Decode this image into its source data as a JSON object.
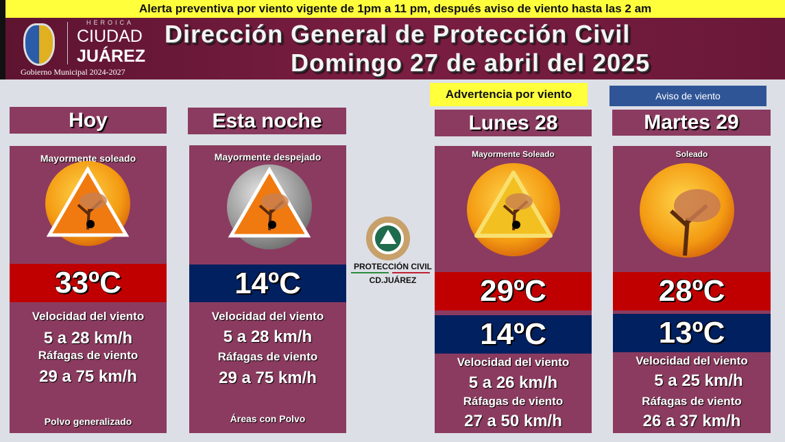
{
  "alert": "Alerta preventiva por viento vigente de 1pm a 11 pm, después aviso de viento hasta las 2 am",
  "logo": {
    "heroica": "HEROICA",
    "ciudad": "CIUDAD",
    "juarez": "JUÁREZ",
    "gobierno": "Gobierno Municipal 2024-2027"
  },
  "title": {
    "line1": "Dirección General de Protección Civil",
    "line2": "Domingo 27 de abril del 2025"
  },
  "center_logo": {
    "name": "PROTECCIÓN CIVIL",
    "city": "CD.JUÁREZ"
  },
  "colors": {
    "card": "#8b3b5f",
    "header": "#6d1a3a",
    "max": "#c00000",
    "min": "#002060",
    "warning": "#ffff3c",
    "notice": "#2f5597"
  },
  "cards": [
    {
      "title": "Hoy",
      "condition": "Mayormente soleado",
      "icon": "sun-wind-warning-icon",
      "temp": "33ºC",
      "wind_label": "Velocidad del viento",
      "wind": "5 a 28 km/h",
      "gust_label": "Ráfagas de viento",
      "gust": "29 a 75 km/h",
      "note": "Polvo generalizado"
    },
    {
      "title": "Esta noche",
      "condition": "Mayormente despejado",
      "icon": "moon-wind-warning-icon",
      "temp": "14ºC",
      "wind_label": "Velocidad del viento",
      "wind": "5 a 28 km/h",
      "gust_label": "Ráfagas de viento",
      "gust": "29 a 75 km/h",
      "note": "Áreas con Polvo"
    },
    {
      "badge": "Advertencia por viento",
      "title": "Lunes 28",
      "condition": "Mayormente Soleado",
      "icon": "sun-wind-warning-icon",
      "temp_max": "29ºC",
      "temp_min": "14ºC",
      "wind_label": "Velocidad del viento",
      "wind": "5 a 26 km/h",
      "gust_label": "Ráfagas de viento",
      "gust": "27 a 50 km/h"
    },
    {
      "badge": "Aviso  de viento",
      "title": "Martes 29",
      "condition": "Soleado",
      "icon": "sun-wind-icon",
      "temp_max": "28ºC",
      "temp_min": "13ºC",
      "wind_label": "Velocidad del viento",
      "wind": "5 a 25 km/h",
      "gust_label": "Ráfagas de viento",
      "gust": "26 a 37 km/h"
    }
  ]
}
